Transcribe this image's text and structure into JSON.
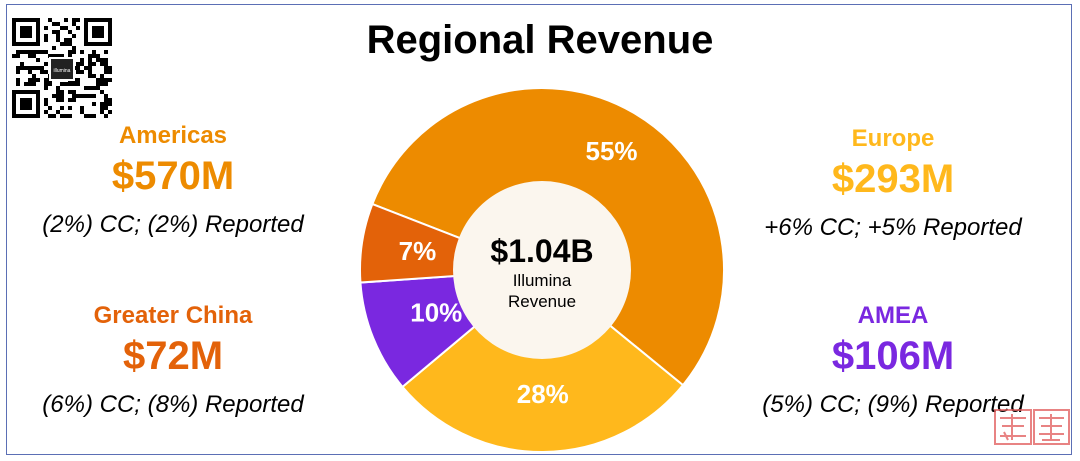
{
  "title": "Regional Revenue",
  "colors": {
    "americas": "#ED8B00",
    "europe": "#FFB81C",
    "amea": "#7A28E0",
    "greater_china": "#E36209",
    "center_fill": "#FBF6EE",
    "frame": "#5B6FB5"
  },
  "regions": {
    "americas": {
      "name": "Americas",
      "value": "$570M",
      "change": "(2%) CC; (2%) Reported"
    },
    "europe": {
      "name": "Europe",
      "value": "$293M",
      "change": "+6% CC; +5% Reported"
    },
    "greater_china": {
      "name": "Greater China",
      "value": "$72M",
      "change": "(6%) CC; (8%) Reported"
    },
    "amea": {
      "name": "AMEA",
      "value": "$106M",
      "change": "(5%) CC; (9%) Reported"
    }
  },
  "center": {
    "total": "$1.04B",
    "line1": "Illumina",
    "line2": "Revenue"
  },
  "logo_text": "illumina",
  "chart_data": {
    "type": "pie",
    "categories": [
      "Americas",
      "Europe",
      "AMEA",
      "Greater China"
    ],
    "values": [
      55,
      28,
      10,
      7
    ],
    "labels": [
      "55%",
      "28%",
      "10%",
      "7%"
    ],
    "unit": "%"
  }
}
